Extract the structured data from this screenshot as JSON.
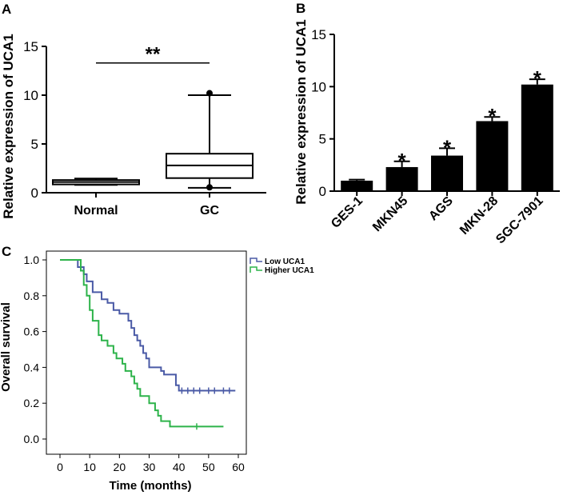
{
  "chart_data": [
    {
      "panel": "A",
      "type": "box",
      "ylabel": "Relative expression of UCA1",
      "ylim": [
        0,
        15
      ],
      "yticks": [
        0,
        5,
        10,
        15
      ],
      "categories": [
        "Normal",
        "GC"
      ],
      "boxes": [
        {
          "name": "Normal",
          "min": 0.8,
          "q1": 0.85,
          "median": 1.1,
          "q3": 1.3,
          "max": 1.45,
          "outliers": []
        },
        {
          "name": "GC",
          "min": 0.5,
          "q1": 1.5,
          "median": 2.8,
          "q3": 4.0,
          "max": 10.0,
          "outliers": [
            0.55,
            10.2
          ]
        }
      ],
      "significance": {
        "label": "**",
        "y": 13.3
      }
    },
    {
      "panel": "B",
      "type": "bar",
      "ylabel": "Relative expression of UCA1",
      "ylim": [
        0,
        15
      ],
      "yticks": [
        0,
        5,
        10,
        15
      ],
      "categories": [
        "GES-1",
        "MKN45",
        "AGS",
        "MKN-28",
        "SGC-7901"
      ],
      "values": [
        1.0,
        2.3,
        3.4,
        6.7,
        10.2
      ],
      "errors": [
        0.1,
        0.55,
        0.7,
        0.4,
        0.5
      ],
      "significance": [
        "",
        "*",
        "*",
        "*",
        "*"
      ]
    },
    {
      "panel": "C",
      "type": "line",
      "subtype": "kaplan-meier",
      "xlabel": "Time (months)",
      "ylabel": "Overall survival",
      "xlim": [
        0,
        60
      ],
      "ylim": [
        0,
        1.0
      ],
      "xticks": [
        0,
        10,
        20,
        30,
        40,
        50,
        60
      ],
      "yticks": [
        0.0,
        0.2,
        0.4,
        0.6,
        0.8,
        1.0
      ],
      "legend_position": "top-right",
      "series": [
        {
          "name": "Low UCA1",
          "color": "#4a5aa6",
          "steps": [
            [
              0,
              1.0
            ],
            [
              5,
              1.0
            ],
            [
              6,
              0.96
            ],
            [
              8,
              0.92
            ],
            [
              9,
              0.88
            ],
            [
              11,
              0.82
            ],
            [
              14,
              0.78
            ],
            [
              16,
              0.76
            ],
            [
              18,
              0.72
            ],
            [
              20,
              0.7
            ],
            [
              23,
              0.66
            ],
            [
              24,
              0.62
            ],
            [
              25,
              0.58
            ],
            [
              26,
              0.55
            ],
            [
              27,
              0.52
            ],
            [
              28,
              0.48
            ],
            [
              29,
              0.45
            ],
            [
              30,
              0.4
            ],
            [
              31,
              0.4
            ],
            [
              34,
              0.38
            ],
            [
              35,
              0.36
            ],
            [
              39,
              0.3
            ],
            [
              40,
              0.27
            ],
            [
              59,
              0.27
            ]
          ],
          "censored": [
            41,
            43,
            45,
            47,
            50,
            52,
            55,
            57
          ]
        },
        {
          "name": "Higher UCA1",
          "color": "#2db34a",
          "steps": [
            [
              0,
              1.0
            ],
            [
              6,
              1.0
            ],
            [
              7,
              0.94
            ],
            [
              8,
              0.86
            ],
            [
              9,
              0.8
            ],
            [
              10,
              0.72
            ],
            [
              11,
              0.66
            ],
            [
              13,
              0.58
            ],
            [
              14,
              0.55
            ],
            [
              16,
              0.52
            ],
            [
              18,
              0.48
            ],
            [
              19,
              0.45
            ],
            [
              21,
              0.42
            ],
            [
              22,
              0.38
            ],
            [
              24,
              0.35
            ],
            [
              25,
              0.31
            ],
            [
              26,
              0.28
            ],
            [
              27,
              0.24
            ],
            [
              30,
              0.2
            ],
            [
              32,
              0.16
            ],
            [
              33,
              0.13
            ],
            [
              34,
              0.1
            ],
            [
              37,
              0.07
            ],
            [
              55,
              0.07
            ]
          ],
          "censored": [
            46
          ]
        }
      ]
    }
  ],
  "panels": {
    "a": "A",
    "b": "B",
    "c": "C"
  }
}
